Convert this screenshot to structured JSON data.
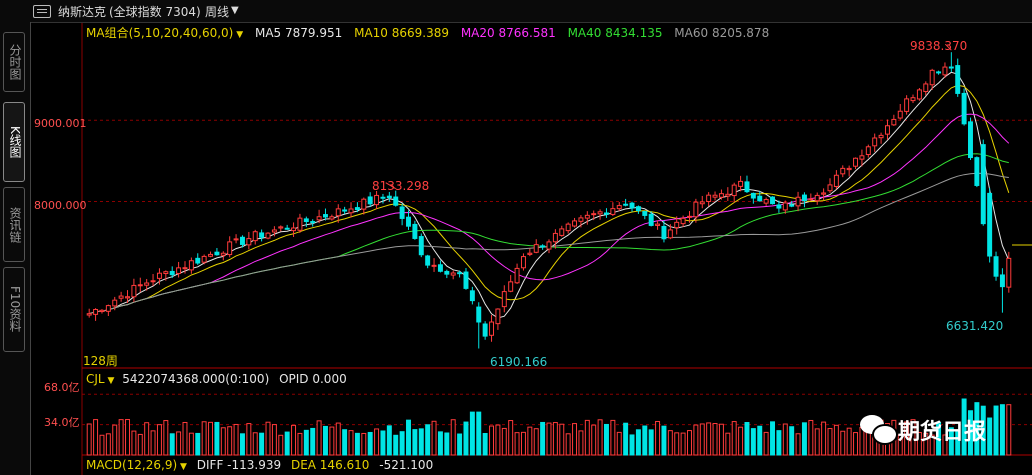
{
  "topbar": {
    "title": "纳斯达克",
    "subtitle": "(全球指数  7304)",
    "period": "周线",
    "period_arrow": "chevron-down-icon"
  },
  "sidebar": {
    "tabs": [
      {
        "label": "分时图",
        "active": false
      },
      {
        "label": "K线图",
        "active": true
      },
      {
        "label": "资讯链",
        "active": false
      },
      {
        "label": "F10资料",
        "active": false
      }
    ]
  },
  "ma_legend": {
    "group_label": "MA组合(5,10,20,40,60,0)",
    "items": [
      {
        "label": "MA5 7879.951",
        "color": "#e6e6e6"
      },
      {
        "label": "MA10 8669.389",
        "color": "#e6d200"
      },
      {
        "label": "MA20 8766.581",
        "color": "#ff33ff"
      },
      {
        "label": "MA40 8434.135",
        "color": "#33dd33"
      },
      {
        "label": "MA60 8205.878",
        "color": "#9a9a9a"
      }
    ]
  },
  "price_axis": {
    "ticks": [
      {
        "value": 9000,
        "label": "9000.001"
      },
      {
        "value": 8000,
        "label": "8000.000"
      }
    ],
    "min": 5950,
    "max": 10050
  },
  "annotations": {
    "high1": {
      "label": "8133.298",
      "color": "#ff4040"
    },
    "high2": {
      "label": "9838.370",
      "color": "#ff4040"
    },
    "low1": {
      "label": "6190.166",
      "color": "#33cccc"
    },
    "low2": {
      "label": "6631.420",
      "color": "#33cccc"
    },
    "period_count": "128周"
  },
  "volume_panel": {
    "legend": "CJL",
    "value_label": "5422074368.000(0:100)",
    "opid_label": "OPID 0.000",
    "ticks": [
      {
        "value": 68,
        "label": "68.0亿"
      },
      {
        "value": 34,
        "label": "34.0亿"
      }
    ]
  },
  "macd_panel": {
    "legend": "MACD(12,26,9)",
    "diff": "DIFF -113.939",
    "dea": "DEA 146.610",
    "macd": "-521.100"
  },
  "watermark": {
    "text": "期货日报",
    "icon": "wechat-icon"
  },
  "colors": {
    "up": "#ff3b3b",
    "down": "#00e5e5",
    "grid": "#8b0000"
  },
  "chart_data": {
    "type": "candlestick",
    "title": "",
    "price_axis_labels": [
      "9000.001",
      "8000.000"
    ],
    "volume_axis_labels": [
      "68.0亿",
      "34.0亿"
    ],
    "anchors": [
      {
        "i": 0,
        "close": 6620
      },
      {
        "i": 10,
        "close": 7050
      },
      {
        "i": 25,
        "close": 7550
      },
      {
        "i": 40,
        "close": 7900
      },
      {
        "i": 47,
        "close": 8080
      },
      {
        "i": 53,
        "close": 7250
      },
      {
        "i": 58,
        "close": 7100
      },
      {
        "i": 62,
        "close": 6350
      },
      {
        "i": 68,
        "close": 7350
      },
      {
        "i": 78,
        "close": 7800
      },
      {
        "i": 84,
        "close": 8000
      },
      {
        "i": 90,
        "close": 7600
      },
      {
        "i": 96,
        "close": 8000
      },
      {
        "i": 102,
        "close": 8200
      },
      {
        "i": 108,
        "close": 7900
      },
      {
        "i": 116,
        "close": 8200
      },
      {
        "i": 125,
        "close": 8950
      },
      {
        "i": 132,
        "close": 9600
      },
      {
        "i": 135,
        "close": 9700
      },
      {
        "i": 138,
        "close": 8600
      },
      {
        "i": 141,
        "close": 7300
      },
      {
        "i": 143,
        "close": 6900
      },
      {
        "i": 144,
        "close": 7300
      }
    ],
    "count": 145,
    "high_points": [
      {
        "i": 48,
        "value": 8133.298
      },
      {
        "i": 135,
        "value": 9838.37
      }
    ],
    "low_points": [
      {
        "i": 61,
        "value": 6190.166
      },
      {
        "i": 143,
        "value": 6631.42
      }
    ]
  }
}
